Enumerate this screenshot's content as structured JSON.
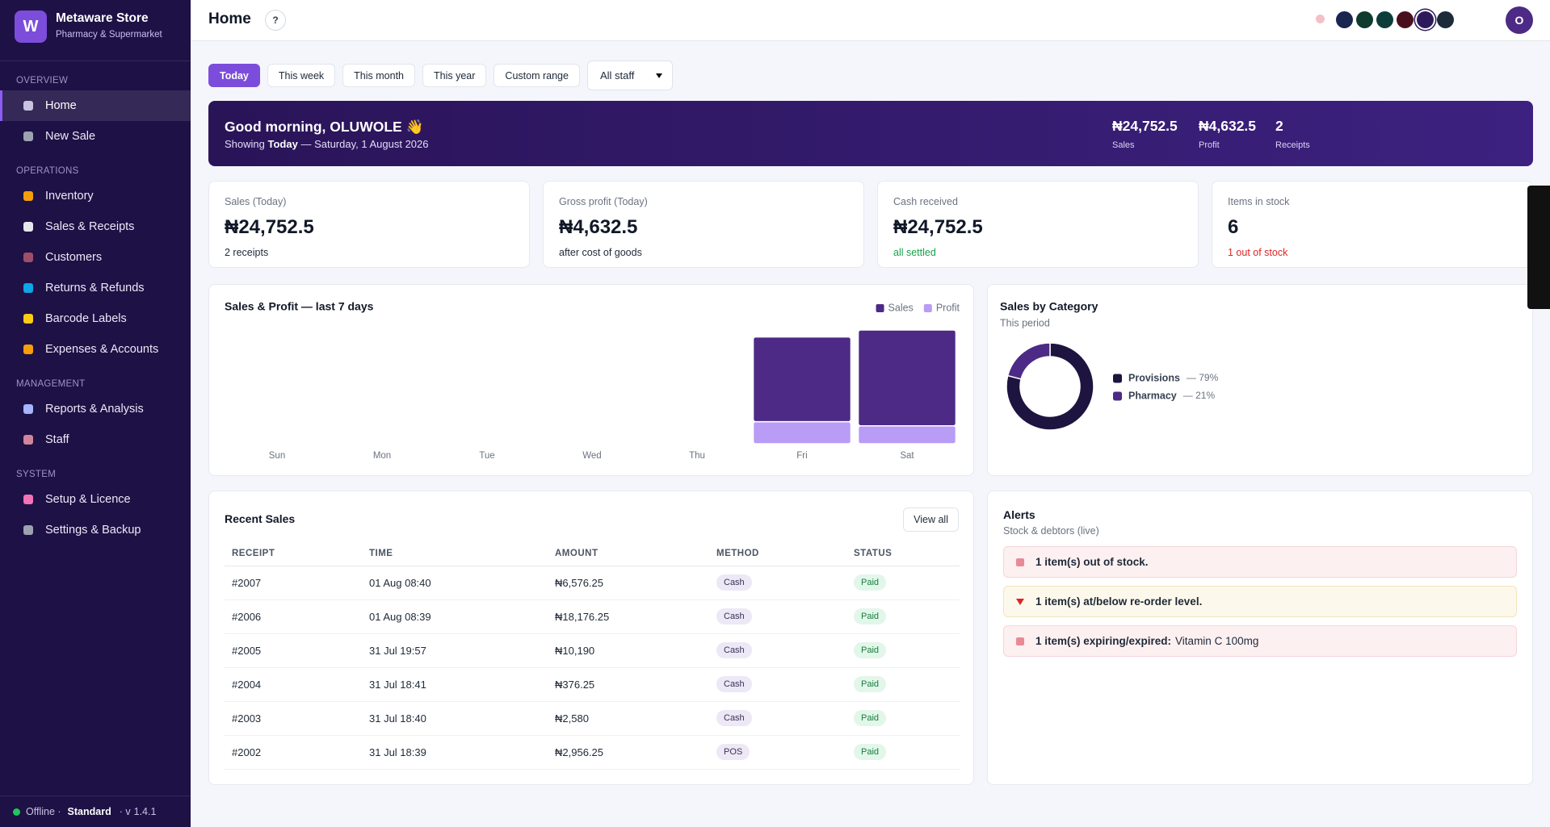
{
  "sidebar": {
    "brand": {
      "logo": "W",
      "name": "Metaware Store",
      "tagline": "Pharmacy & Supermarket"
    },
    "sections": [
      {
        "title": "OVERVIEW",
        "items": [
          "Home",
          "New Sale"
        ]
      },
      {
        "title": "OPERATIONS",
        "items": [
          "Inventory",
          "Sales & Receipts",
          "Customers",
          "Returns & Refunds",
          "Barcode Labels",
          "Expenses & Accounts"
        ]
      },
      {
        "title": "MANAGEMENT",
        "items": [
          "Reports & Analysis",
          "Staff"
        ]
      },
      {
        "title": "SYSTEM",
        "items": [
          "Setup & Licence",
          "Settings & Backup"
        ]
      }
    ],
    "active_item": "Home",
    "footer": {
      "status": "Offline ·",
      "plan": "Standard",
      "separator": "· v",
      "version": "1.4.1"
    }
  },
  "topbar": {
    "title": "Home",
    "help": "?",
    "avatar": "O"
  },
  "filters": {
    "buttons": [
      "Today",
      "This week",
      "This month",
      "This year",
      "Custom range"
    ],
    "active": "Today",
    "staff": "All staff"
  },
  "banner": {
    "greeting": "Good morning, OLUWOLE 👋",
    "showing": "Showing",
    "period": "Today",
    "date": "— Saturday, 1 August 2026",
    "stats": [
      {
        "value": "₦24,752.5",
        "label": "Sales"
      },
      {
        "value": "₦4,632.5",
        "label": "Profit"
      },
      {
        "value": "2",
        "label": "Receipts"
      }
    ]
  },
  "kpis": [
    {
      "label": "Sales (Today)",
      "value": "₦24,752.5",
      "note": "2 receipts",
      "tone": "neutral"
    },
    {
      "label": "Gross profit (Today)",
      "value": "₦4,632.5",
      "note": "after cost of goods",
      "tone": "neutral"
    },
    {
      "label": "Cash received",
      "value": "₦24,752.5",
      "note": "all settled",
      "tone": "good"
    },
    {
      "label": "Items in stock",
      "value": "6",
      "note": "1 out of stock",
      "tone": "bad"
    }
  ],
  "chart_data": [
    {
      "type": "bar",
      "title": "Sales & Profit — last 7 days",
      "stacked": true,
      "categories": [
        "Sun",
        "Mon",
        "Tue",
        "Wed",
        "Thu",
        "Fri",
        "Sat"
      ],
      "series": [
        {
          "name": "Sales",
          "color": "#4c2a85",
          "values": [
            0,
            0,
            0,
            0,
            0,
            21900,
            24752.5
          ]
        },
        {
          "name": "Profit",
          "color": "#b89cf5",
          "values": [
            0,
            0,
            0,
            0,
            0,
            5700,
            4632.5
          ]
        }
      ],
      "legend": "top-right"
    },
    {
      "type": "pie",
      "title": "Sales by Category",
      "subtitle": "This period",
      "donut": true,
      "categories": [
        "Provisions",
        "Pharmacy"
      ],
      "values": [
        79,
        21
      ],
      "value_labels": [
        "— 79%",
        "— 21%"
      ],
      "colors": [
        "#1e1440",
        "#4c2a85"
      ]
    }
  ],
  "recent_sales": {
    "title": "Recent Sales",
    "action": "View all",
    "columns": [
      "RECEIPT",
      "TIME",
      "AMOUNT",
      "METHOD",
      "STATUS"
    ],
    "rows": [
      [
        "#2007",
        "01 Aug 08:40",
        "₦6,576.25",
        "Cash",
        "Paid"
      ],
      [
        "#2006",
        "01 Aug 08:39",
        "₦18,176.25",
        "Cash",
        "Paid"
      ],
      [
        "#2005",
        "31 Jul 19:57",
        "₦10,190",
        "Cash",
        "Paid"
      ],
      [
        "#2004",
        "31 Jul 18:41",
        "₦376.25",
        "Cash",
        "Paid"
      ],
      [
        "#2003",
        "31 Jul 18:40",
        "₦2,580",
        "Cash",
        "Paid"
      ],
      [
        "#2002",
        "31 Jul 18:39",
        "₦2,956.25",
        "POS",
        "Paid"
      ]
    ]
  },
  "alerts": {
    "title": "Alerts",
    "subtitle": "Stock & debtors (live)",
    "items": [
      {
        "text": "1 item(s) out of stock.",
        "level": "danger"
      },
      {
        "text": "1 item(s) at/below re-order level.",
        "level": "warning"
      },
      {
        "text": "1 item(s) expiring/expired:",
        "detail": "Vitamin C 100mg",
        "level": "danger"
      }
    ]
  }
}
